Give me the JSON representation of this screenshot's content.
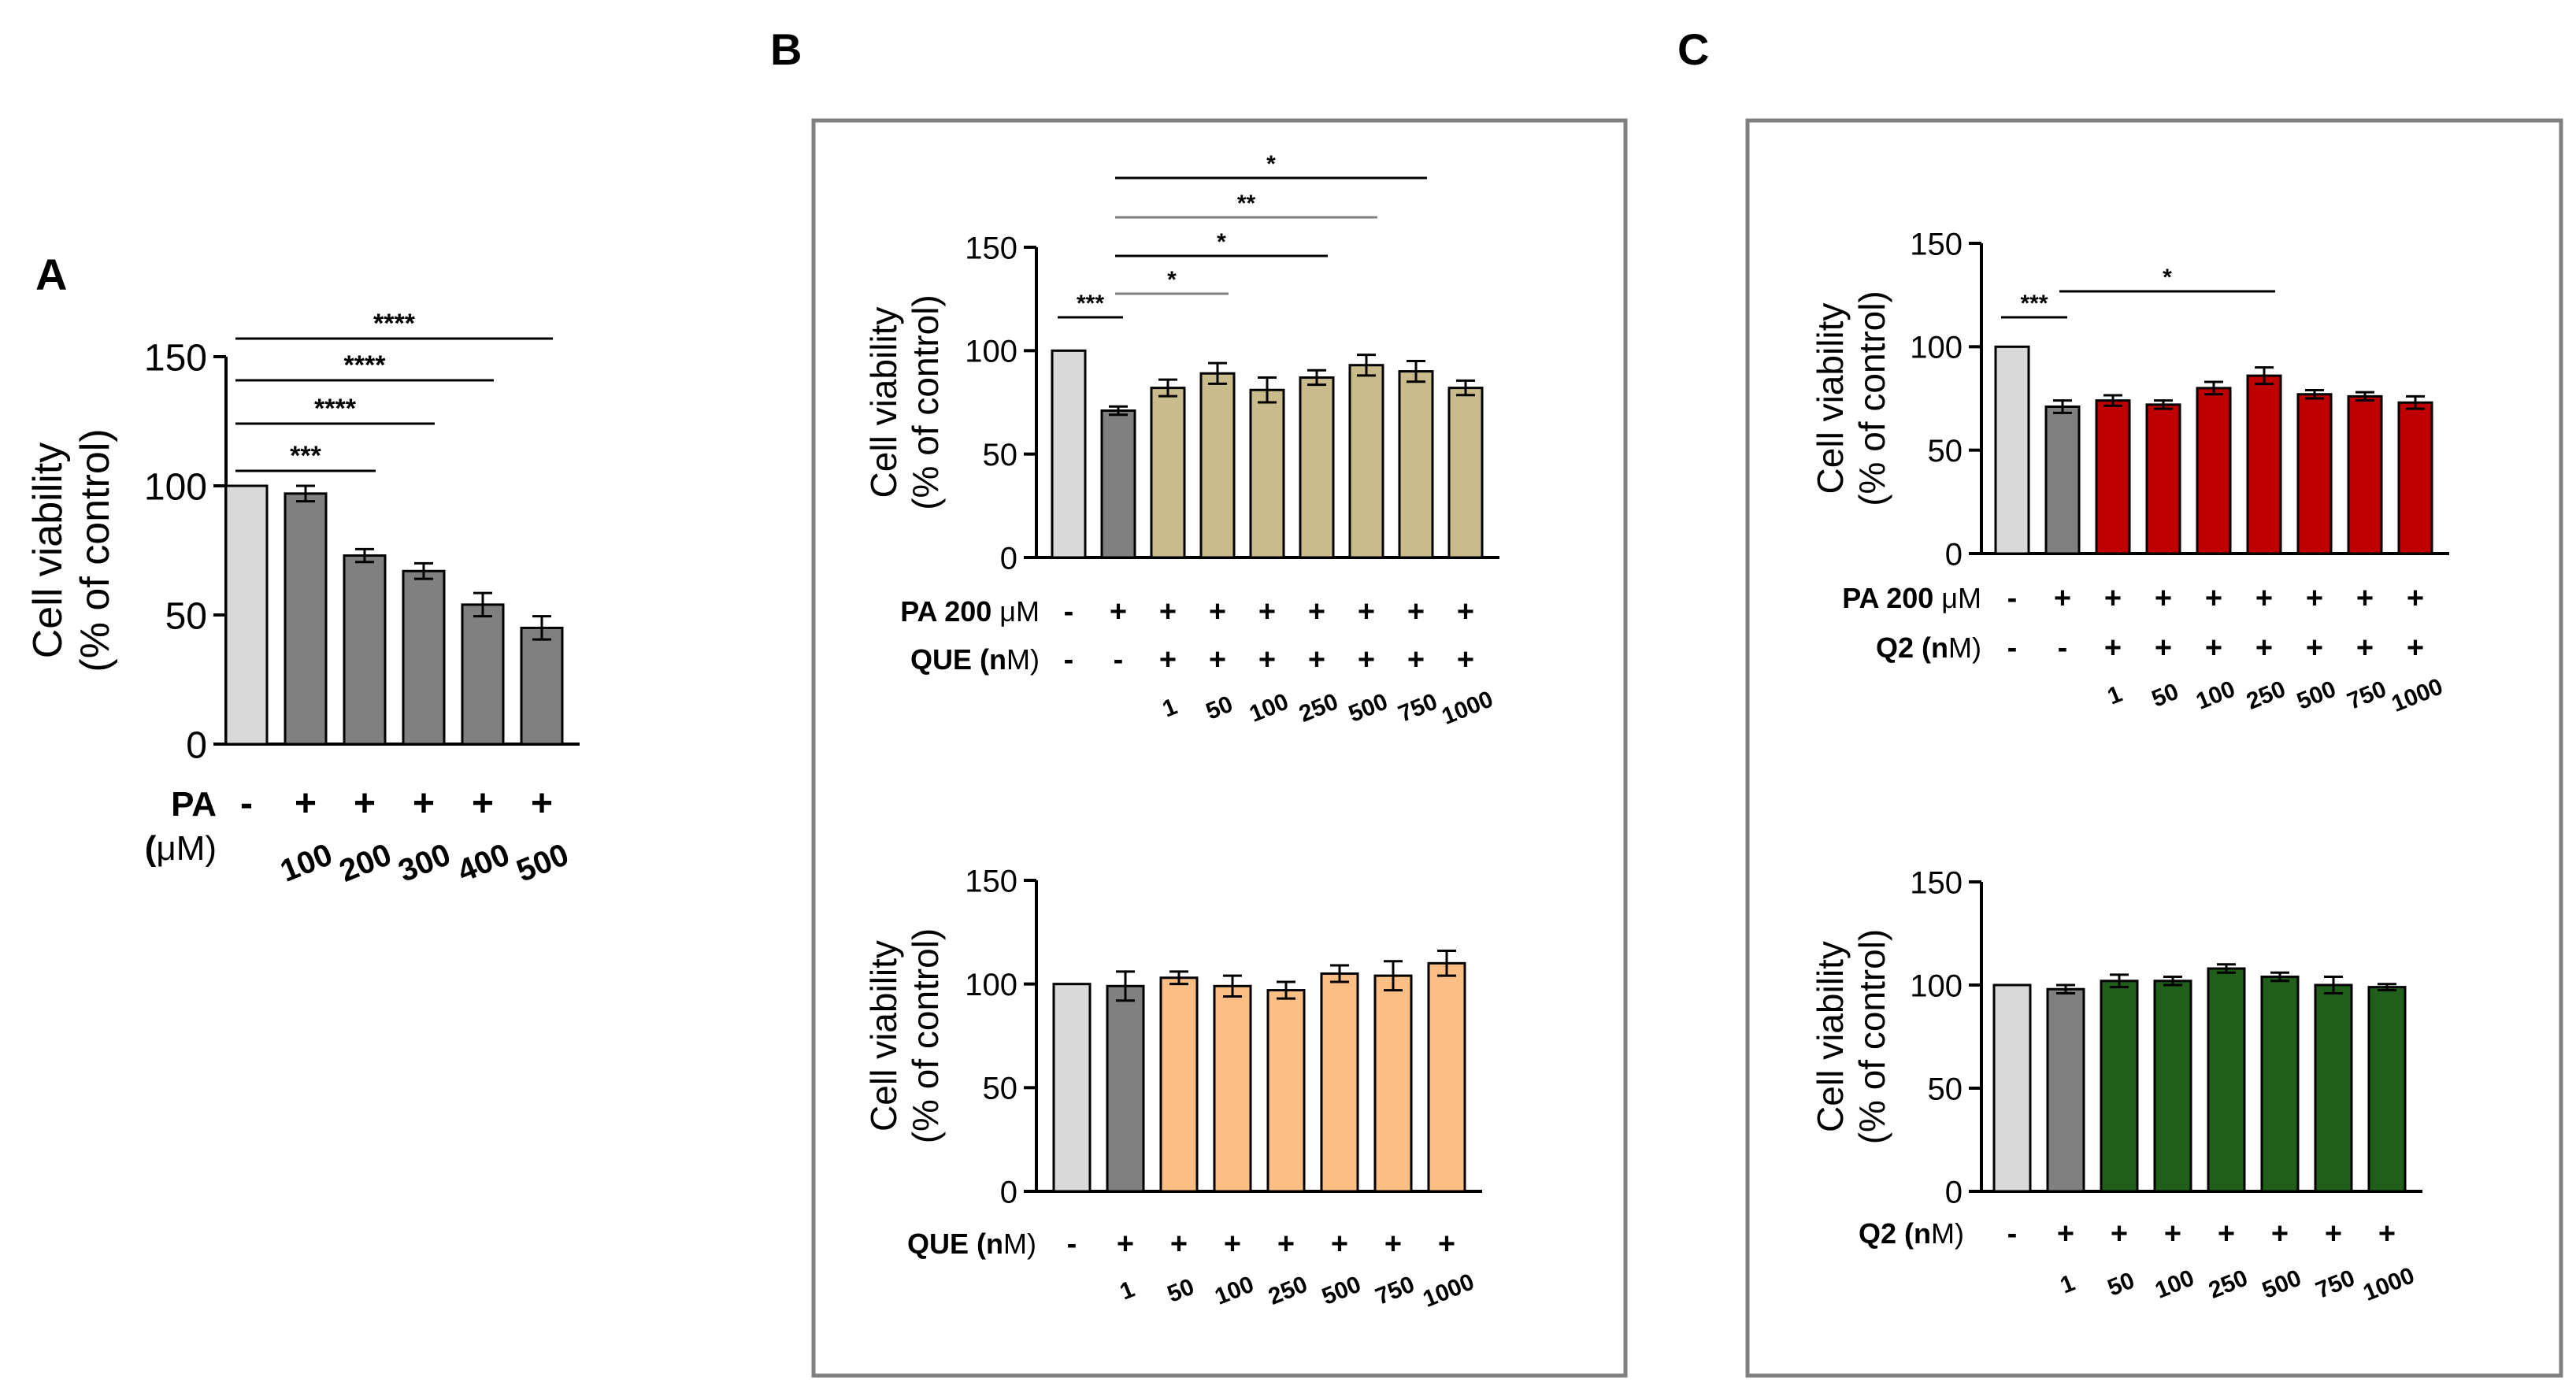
{
  "panels": {
    "A": {
      "label": "A"
    },
    "B": {
      "label": "B"
    },
    "C": {
      "label": "C"
    }
  },
  "colors": {
    "control": "#d9d9d9",
    "gray": "#808080",
    "que_pa": "#c9bb8c",
    "que": "#fbbe84",
    "q2_pa": "#c00000",
    "q2": "#1f5f1a",
    "bracket_black": "#000000",
    "bracket_gray": "#7f7f7f",
    "frame": "#808080"
  },
  "chart_data": [
    {
      "id": "A",
      "type": "bar",
      "ylabel": [
        "Cell viability",
        "(% of control)"
      ],
      "ylim": [
        0,
        150
      ],
      "yticks": [
        0,
        50,
        100,
        150
      ],
      "categories": [
        "control",
        "100",
        "200",
        "300",
        "400",
        "500"
      ],
      "values": [
        100,
        97,
        73,
        67,
        54,
        45
      ],
      "errors": [
        0,
        3,
        2.5,
        3,
        4.5,
        4.5
      ],
      "bar_colors": [
        "control",
        "gray",
        "gray",
        "gray",
        "gray",
        "gray"
      ],
      "rows": [
        {
          "label": "PA",
          "unit": "",
          "marks": [
            "-",
            "+",
            "+",
            "+",
            "+",
            "+"
          ]
        },
        {
          "label": "(",
          "unit": "μM)",
          "marks": [
            "",
            "",
            "",
            "",
            "",
            ""
          ]
        }
      ],
      "conc_labels": [
        "",
        "100",
        "200",
        "300",
        "400",
        "500"
      ],
      "significance": [
        {
          "from": 0,
          "to": 5,
          "label": "****",
          "color": "bracket_black"
        },
        {
          "from": 0,
          "to": 4,
          "label": "****",
          "color": "bracket_black"
        },
        {
          "from": 0,
          "to": 3,
          "label": "****",
          "color": "bracket_black"
        },
        {
          "from": 0,
          "to": 2,
          "label": "***",
          "color": "bracket_black"
        }
      ]
    },
    {
      "id": "B_top",
      "type": "bar",
      "ylabel": [
        "Cell viability",
        "(% of control)"
      ],
      "ylim": [
        0,
        150
      ],
      "yticks": [
        0,
        50,
        100,
        150
      ],
      "categories": [
        "control",
        "PA",
        "1",
        "50",
        "100",
        "250",
        "500",
        "750",
        "1000"
      ],
      "values": [
        100,
        71,
        82,
        89,
        81,
        87,
        93,
        90,
        82
      ],
      "errors": [
        0,
        2,
        4,
        5,
        6,
        3.5,
        5,
        5,
        3.5
      ],
      "bar_colors": [
        "control",
        "gray",
        "que_pa",
        "que_pa",
        "que_pa",
        "que_pa",
        "que_pa",
        "que_pa",
        "que_pa"
      ],
      "rows": [
        {
          "label": "PA 200 ",
          "unit": "μM",
          "marks": [
            "-",
            "+",
            "+",
            "+",
            "+",
            "+",
            "+",
            "+",
            "+"
          ]
        },
        {
          "label": "QUE (n",
          "unit": "M)",
          "marks": [
            "-",
            "-",
            "+",
            "+",
            "+",
            "+",
            "+",
            "+",
            "+"
          ]
        }
      ],
      "conc_labels": [
        "",
        "",
        "1",
        "50",
        "100",
        "250",
        "500",
        "750",
        "1000"
      ],
      "significance": [
        {
          "from": 1,
          "to": 7,
          "label": "*",
          "color": "bracket_black"
        },
        {
          "from": 1,
          "to": 6,
          "label": "**",
          "color": "bracket_gray"
        },
        {
          "from": 1,
          "to": 5,
          "label": "*",
          "color": "bracket_black"
        },
        {
          "from": 1,
          "to": 3,
          "label": "*",
          "color": "bracket_gray"
        },
        {
          "from": 0,
          "to": 1,
          "label": "***",
          "color": "bracket_black"
        }
      ]
    },
    {
      "id": "B_bottom",
      "type": "bar",
      "ylabel": [
        "Cell viability",
        "(% of control)"
      ],
      "ylim": [
        0,
        150
      ],
      "yticks": [
        0,
        50,
        100,
        150
      ],
      "categories": [
        "control",
        "1",
        "50",
        "100",
        "250",
        "500",
        "750",
        "1000"
      ],
      "values": [
        100,
        99,
        103,
        99,
        97,
        105,
        104,
        110
      ],
      "errors": [
        0,
        7,
        3,
        5,
        4,
        4,
        7,
        6
      ],
      "bar_colors": [
        "control",
        "gray",
        "que",
        "que",
        "que",
        "que",
        "que",
        "que"
      ],
      "rows": [
        {
          "label": "QUE (n",
          "unit": "M)",
          "marks": [
            "-",
            "+",
            "+",
            "+",
            "+",
            "+",
            "+",
            "+"
          ]
        }
      ],
      "conc_labels": [
        "",
        "1",
        "50",
        "100",
        "250",
        "500",
        "750",
        "1000"
      ],
      "significance": []
    },
    {
      "id": "C_top",
      "type": "bar",
      "ylabel": [
        "Cell viability",
        "(% of control)"
      ],
      "ylim": [
        0,
        150
      ],
      "yticks": [
        0,
        50,
        100,
        150
      ],
      "categories": [
        "control",
        "PA",
        "1",
        "50",
        "100",
        "250",
        "500",
        "750",
        "1000"
      ],
      "values": [
        100,
        71,
        74,
        72,
        80,
        86,
        77,
        76,
        73
      ],
      "errors": [
        0,
        3,
        2.5,
        2,
        3,
        4,
        2,
        2,
        3
      ],
      "bar_colors": [
        "control",
        "gray",
        "q2_pa",
        "q2_pa",
        "q2_pa",
        "q2_pa",
        "q2_pa",
        "q2_pa",
        "q2_pa"
      ],
      "rows": [
        {
          "label": "PA 200 ",
          "unit": "μM",
          "marks": [
            "-",
            "+",
            "+",
            "+",
            "+",
            "+",
            "+",
            "+",
            "+"
          ]
        },
        {
          "label": "Q2 (n",
          "unit": "M)",
          "marks": [
            "-",
            "-",
            "+",
            "+",
            "+",
            "+",
            "+",
            "+",
            "+"
          ]
        }
      ],
      "conc_labels": [
        "",
        "",
        "1",
        "50",
        "100",
        "250",
        "500",
        "750",
        "1000"
      ],
      "significance": [
        {
          "from": 1,
          "to": 5,
          "label": "*",
          "color": "bracket_black"
        },
        {
          "from": 0,
          "to": 1,
          "label": "***",
          "color": "bracket_black"
        }
      ]
    },
    {
      "id": "C_bottom",
      "type": "bar",
      "ylabel": [
        "Cell viability",
        "(% of control)"
      ],
      "ylim": [
        0,
        150
      ],
      "yticks": [
        0,
        50,
        100,
        150
      ],
      "categories": [
        "control",
        "1",
        "50",
        "100",
        "250",
        "500",
        "750",
        "1000"
      ],
      "values": [
        100,
        98,
        102,
        102,
        108,
        104,
        100,
        99
      ],
      "errors": [
        0,
        2,
        3,
        2,
        2,
        2,
        4,
        1.5
      ],
      "bar_colors": [
        "control",
        "gray",
        "q2",
        "q2",
        "q2",
        "q2",
        "q2",
        "q2"
      ],
      "rows": [
        {
          "label": "Q2 (n",
          "unit": "M)",
          "marks": [
            "-",
            "+",
            "+",
            "+",
            "+",
            "+",
            "+",
            "+"
          ]
        }
      ],
      "conc_labels": [
        "",
        "1",
        "50",
        "100",
        "250",
        "500",
        "750",
        "1000"
      ],
      "significance": []
    }
  ]
}
